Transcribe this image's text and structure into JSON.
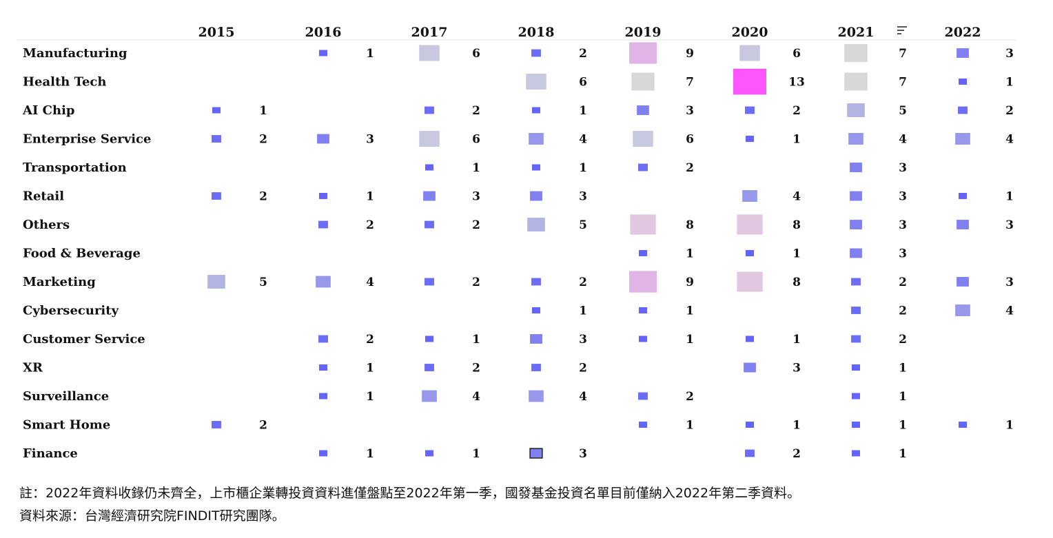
{
  "chart_data": {
    "type": "heatmap",
    "title": "",
    "xlabel": "",
    "ylabel": "",
    "columns": [
      "2015",
      "2016",
      "2017",
      "2018",
      "2019",
      "2020",
      "2021",
      "2022"
    ],
    "rows": [
      "Manufacturing",
      "Health Tech",
      "AI Chip",
      "Enterprise Service",
      "Transportation",
      "Retail",
      "Others",
      "Food & Beverage",
      "Marketing",
      "Cybersecurity",
      "Customer Service",
      "XR",
      "Surveillance",
      "Smart Home",
      "Finance"
    ],
    "values": [
      [
        null,
        1,
        6,
        2,
        9,
        6,
        7,
        3
      ],
      [
        null,
        null,
        null,
        6,
        7,
        13,
        7,
        1
      ],
      [
        1,
        null,
        2,
        1,
        3,
        2,
        5,
        2
      ],
      [
        2,
        3,
        6,
        4,
        6,
        1,
        4,
        4
      ],
      [
        null,
        null,
        1,
        1,
        2,
        null,
        3,
        null
      ],
      [
        2,
        1,
        3,
        3,
        null,
        4,
        3,
        1
      ],
      [
        null,
        2,
        2,
        5,
        8,
        8,
        3,
        3
      ],
      [
        null,
        null,
        null,
        null,
        1,
        1,
        3,
        null
      ],
      [
        5,
        4,
        2,
        2,
        9,
        8,
        2,
        3
      ],
      [
        null,
        null,
        null,
        1,
        1,
        null,
        2,
        4
      ],
      [
        null,
        2,
        1,
        3,
        1,
        1,
        2,
        null
      ],
      [
        null,
        1,
        2,
        2,
        null,
        3,
        1,
        null
      ],
      [
        null,
        1,
        4,
        4,
        2,
        null,
        1,
        null
      ],
      [
        2,
        null,
        null,
        null,
        1,
        1,
        1,
        1
      ],
      [
        null,
        1,
        1,
        3,
        null,
        2,
        1,
        null
      ]
    ],
    "color_scale": {
      "low": "#6666ff",
      "mid": "#c8c8e0",
      "grey": "#d8d8d8",
      "pink": "#e0b4e0",
      "high": "#ff55ff"
    },
    "highlighted_cell": {
      "row": "Finance",
      "column": "2018"
    }
  },
  "notes": {
    "line1": "註：2022年資料收錄仍未齊全，上市櫃企業轉投資資料進僅盤點至2022年第一季，國發基金投資名單目前僅納入2022年第二季資料。",
    "line2": "資料來源：台灣經濟研究院FINDIT研究團隊。"
  },
  "header_icon": "sort-icon"
}
